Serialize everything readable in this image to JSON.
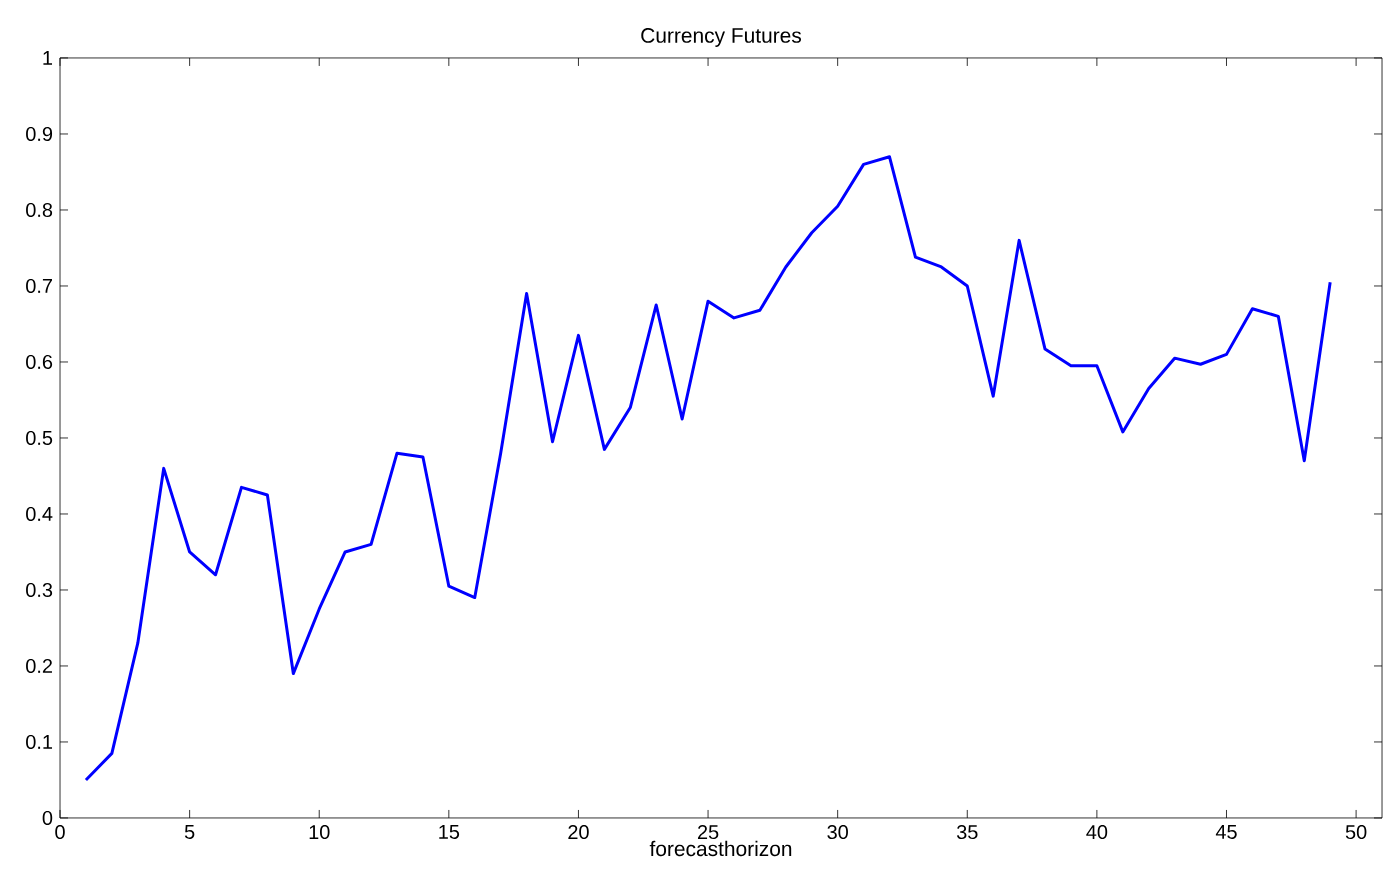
{
  "chart_data": {
    "type": "line",
    "title": "Currency Futures",
    "xlabel": "forecasthorizon",
    "x": [
      1,
      2,
      3,
      4,
      5,
      6,
      7,
      8,
      9,
      10,
      11,
      12,
      13,
      14,
      15,
      16,
      17,
      18,
      19,
      20,
      21,
      22,
      23,
      24,
      25,
      26,
      27,
      28,
      29,
      30,
      31,
      32,
      33,
      34,
      35,
      36,
      37,
      38,
      39,
      40,
      41,
      42,
      43,
      44,
      45,
      46,
      47,
      48,
      49
    ],
    "series": [
      {
        "color": "#0000ff",
        "values": [
          0.05,
          0.085,
          0.23,
          0.46,
          0.35,
          0.32,
          0.435,
          0.425,
          0.19,
          0.275,
          0.35,
          0.36,
          0.48,
          0.475,
          0.305,
          0.29,
          0.48,
          0.69,
          0.495,
          0.635,
          0.485,
          0.54,
          0.675,
          0.525,
          0.68,
          0.658,
          0.668,
          0.725,
          0.77,
          0.805,
          0.86,
          0.87,
          0.738,
          0.725,
          0.7,
          0.555,
          0.76,
          0.617,
          0.595,
          0.595,
          0.508,
          0.565,
          0.605,
          0.597,
          0.61,
          0.67,
          0.66,
          0.47,
          0.705
        ]
      }
    ],
    "xlim": [
      0,
      51
    ],
    "ylim": [
      0,
      1
    ],
    "xticks": [
      0,
      5,
      10,
      15,
      20,
      25,
      30,
      35,
      40,
      45,
      50
    ],
    "yticks": [
      0,
      0.1,
      0.2,
      0.3,
      0.4,
      0.5,
      0.6,
      0.7,
      0.8,
      0.9,
      1
    ],
    "grid": false,
    "line_style": "solid",
    "marker": "none"
  }
}
